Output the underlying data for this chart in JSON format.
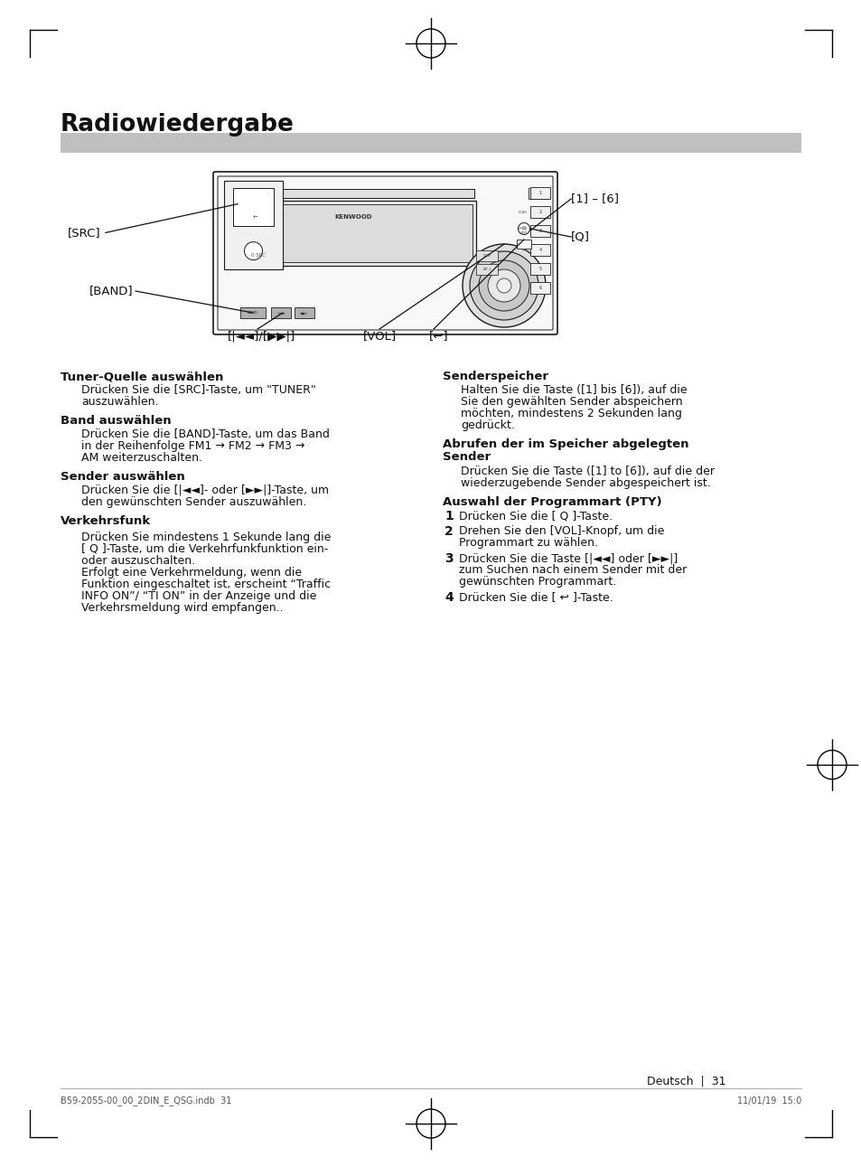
{
  "title": "Radiowiedergabe",
  "bg_color": "#ffffff",
  "title_bar_color": "#c0c0c0",
  "title_color": "#111111",
  "body_color": "#111111",
  "page_number": "31",
  "page_label": "Deutsch",
  "footer_left": "B59-2055-00_00_2DIN_E_QSG.indb  31",
  "footer_right": "11/01/19  15:0",
  "left_sections": [
    {
      "heading": "Tuner-Quelle auswählen",
      "body": "Drücken Sie die [SRC]-Taste, um \"TUNER\"\nauszuwählen."
    },
    {
      "heading": "Band auswählen",
      "body": "Drücken Sie die [BAND]-Taste, um das Band\nin der Reihenfolge FM1 → FM2 → FM3 →\nAM weiterzuschalten."
    },
    {
      "heading": "Sender auswählen",
      "body": "Drücken Sie die [|◄◄]- oder [►►|]-Taste, um\nden gewünschten Sender auszuwählen."
    },
    {
      "heading": "Verkehrsfunk",
      "body_lines": [
        "Drücken Sie mindestens 1 Sekunde lang die",
        "[ 🔍 ]-Taste, um die Verkehrfunkfunktion ein-",
        "oder auszuschalten.",
        "Erfolgt eine Verkehrmeldung, wenn die",
        "Funktion eingeschaltet ist, erscheint “Traffic",
        "INFO ON”/ “TI ON” in der Anzeige und die",
        "Verkehrsmeldung wird empfangen.."
      ]
    }
  ],
  "right_sections": [
    {
      "heading": "Senderspeicher",
      "body": "Halten Sie die Taste ([1] bis [6]), auf die\nSie den gewählten Sender abspeichern\nmöchten, mindestens 2 Sekunden lang\ngedrückt."
    },
    {
      "heading": "Abrufen der im Speicher abgelegten\nSender",
      "body": "Drücken Sie die Taste ([1] to [6]), auf die der\nwiederzugebende Sender abgespeichert ist."
    },
    {
      "heading": "Auswahl der Programmart (PTY)",
      "numbered": [
        "Drücken Sie die [ Q ]-Taste.",
        "Drehen Sie den [VOL]-Knopf, um die\nProgrammart zu wählen.",
        "Drücken Sie die Taste [|◄◄] oder [►►|]\nzum Suchen nach einem Sender mit der\ngewünschten Programmart.",
        "Drücken Sie die [ ↩ ]-Taste."
      ]
    }
  ]
}
